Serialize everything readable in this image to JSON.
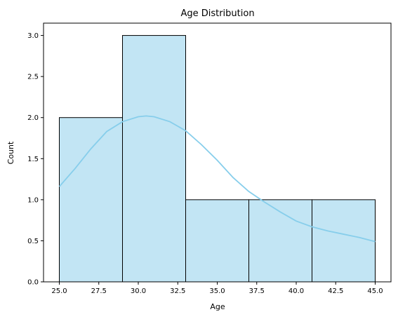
{
  "chart_data": {
    "type": "bar",
    "title": "Age Distribution",
    "xlabel": "Age",
    "ylabel": "Count",
    "bins": [
      {
        "start": 25,
        "end": 29,
        "count": 2
      },
      {
        "start": 29,
        "end": 33,
        "count": 3
      },
      {
        "start": 33,
        "end": 37,
        "count": 1
      },
      {
        "start": 37,
        "end": 41,
        "count": 1
      },
      {
        "start": 41,
        "end": 45,
        "count": 1
      }
    ],
    "kde": {
      "x": [
        25.0,
        26.0,
        27.0,
        28.0,
        29.0,
        30.0,
        30.5,
        31.0,
        32.0,
        33.0,
        34.0,
        35.0,
        36.0,
        37.0,
        38.0,
        39.0,
        40.0,
        41.0,
        42.0,
        43.0,
        44.0,
        45.0
      ],
      "y": [
        1.16,
        1.38,
        1.62,
        1.83,
        1.95,
        2.01,
        2.02,
        2.01,
        1.95,
        1.84,
        1.67,
        1.48,
        1.27,
        1.1,
        0.97,
        0.85,
        0.74,
        0.67,
        0.62,
        0.58,
        0.54,
        0.49
      ]
    },
    "xlim": [
      24.0,
      46.0
    ],
    "ylim": [
      0.0,
      3.15
    ],
    "xticks": [
      "25.0",
      "27.5",
      "30.0",
      "32.5",
      "35.0",
      "37.5",
      "40.0",
      "42.5",
      "45.0"
    ],
    "yticks": [
      "0.0",
      "0.5",
      "1.0",
      "1.5",
      "2.0",
      "2.5",
      "3.0"
    ],
    "grid": false,
    "colors": {
      "bar_fill": "#c2e5f4",
      "bar_edge": "#000000",
      "kde_line": "#87ceeb"
    }
  }
}
